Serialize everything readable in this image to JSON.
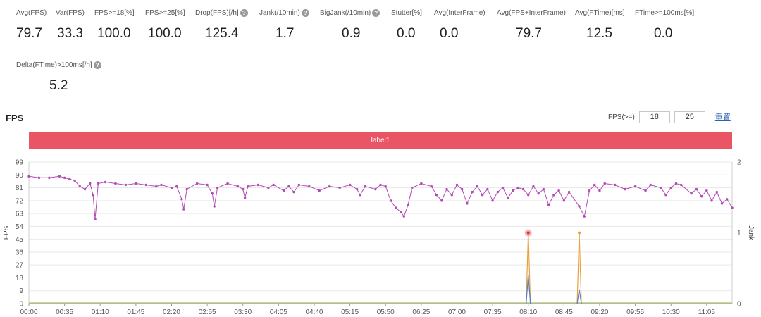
{
  "metrics": [
    {
      "label": "Avg(FPS)",
      "value": "79.7",
      "help": false
    },
    {
      "label": "Var(FPS)",
      "value": "33.3",
      "help": false
    },
    {
      "label": "FPS>=18[%]",
      "value": "100.0",
      "help": false
    },
    {
      "label": "FPS>=25[%]",
      "value": "100.0",
      "help": false
    },
    {
      "label": "Drop(FPS)[/h]",
      "value": "125.4",
      "help": true
    },
    {
      "label": "Jank(/10min)",
      "value": "1.7",
      "help": true
    },
    {
      "label": "BigJank(/10min)",
      "value": "0.9",
      "help": true
    },
    {
      "label": "Stutter[%]",
      "value": "0.0",
      "help": false
    },
    {
      "label": "Avg(InterFrame)",
      "value": "0.0",
      "help": false
    },
    {
      "label": "Avg(FPS+InterFrame)",
      "value": "79.7",
      "help": false
    },
    {
      "label": "Avg(FTime)[ms]",
      "value": "12.5",
      "help": false
    },
    {
      "label": "FTime>=100ms[%]",
      "value": "0.0",
      "help": false
    },
    {
      "label": "Delta(FTime)>100ms[/h]",
      "value": "5.2",
      "help": true
    }
  ],
  "section_title": "FPS",
  "fps_threshold": {
    "label": "FPS(>=)",
    "low": "18",
    "high": "25",
    "reset_label": "重置"
  },
  "label_bar": {
    "text": "label1",
    "color": "#ea5566"
  },
  "chart_data": {
    "type": "line",
    "ylabel": "FPS",
    "y2label": "Jank",
    "ylim": [
      0,
      99
    ],
    "y_ticks": [
      0,
      9,
      18,
      27,
      36,
      45,
      54,
      63,
      72,
      81,
      90,
      99
    ],
    "y2lim": [
      0,
      2
    ],
    "y2_ticks": [
      0,
      1,
      2
    ],
    "x_ticks": [
      "00:00",
      "00:35",
      "01:10",
      "01:45",
      "02:20",
      "02:55",
      "03:30",
      "04:05",
      "04:40",
      "05:15",
      "05:50",
      "06:25",
      "07:00",
      "07:35",
      "08:10",
      "08:45",
      "09:20",
      "09:55",
      "10:30",
      "11:05"
    ],
    "x_range_minutes": [
      0,
      690
    ],
    "fps_series": {
      "name": "FPS",
      "color": "#b24bb5",
      "points": [
        [
          0,
          89
        ],
        [
          10,
          88
        ],
        [
          20,
          88
        ],
        [
          30,
          89
        ],
        [
          35,
          88
        ],
        [
          40,
          87
        ],
        [
          45,
          86
        ],
        [
          50,
          82
        ],
        [
          55,
          80
        ],
        [
          60,
          84
        ],
        [
          63,
          76
        ],
        [
          65,
          59
        ],
        [
          68,
          84
        ],
        [
          75,
          85
        ],
        [
          85,
          84
        ],
        [
          95,
          83
        ],
        [
          105,
          84
        ],
        [
          115,
          83
        ],
        [
          125,
          82
        ],
        [
          130,
          83
        ],
        [
          140,
          81
        ],
        [
          145,
          82
        ],
        [
          150,
          73
        ],
        [
          152,
          66
        ],
        [
          155,
          80
        ],
        [
          165,
          84
        ],
        [
          175,
          83
        ],
        [
          180,
          77
        ],
        [
          182,
          68
        ],
        [
          185,
          81
        ],
        [
          195,
          84
        ],
        [
          205,
          82
        ],
        [
          210,
          80
        ],
        [
          212,
          74
        ],
        [
          215,
          82
        ],
        [
          225,
          83
        ],
        [
          235,
          81
        ],
        [
          240,
          83
        ],
        [
          250,
          79
        ],
        [
          255,
          82
        ],
        [
          260,
          78
        ],
        [
          265,
          83
        ],
        [
          275,
          82
        ],
        [
          285,
          79
        ],
        [
          295,
          82
        ],
        [
          305,
          81
        ],
        [
          315,
          83
        ],
        [
          322,
          80
        ],
        [
          325,
          76
        ],
        [
          330,
          82
        ],
        [
          340,
          80
        ],
        [
          345,
          83
        ],
        [
          350,
          82
        ],
        [
          355,
          72
        ],
        [
          360,
          67
        ],
        [
          365,
          64
        ],
        [
          368,
          61
        ],
        [
          372,
          69
        ],
        [
          376,
          81
        ],
        [
          385,
          84
        ],
        [
          395,
          82
        ],
        [
          400,
          76
        ],
        [
          405,
          72
        ],
        [
          410,
          80
        ],
        [
          415,
          76
        ],
        [
          420,
          83
        ],
        [
          425,
          80
        ],
        [
          430,
          70
        ],
        [
          435,
          78
        ],
        [
          440,
          82
        ],
        [
          445,
          76
        ],
        [
          450,
          80
        ],
        [
          455,
          72
        ],
        [
          460,
          78
        ],
        [
          465,
          81
        ],
        [
          470,
          74
        ],
        [
          475,
          79
        ],
        [
          480,
          81
        ],
        [
          485,
          80
        ],
        [
          490,
          76
        ],
        [
          495,
          82
        ],
        [
          500,
          77
        ],
        [
          505,
          80
        ],
        [
          510,
          69
        ],
        [
          515,
          76
        ],
        [
          520,
          79
        ],
        [
          525,
          72
        ],
        [
          530,
          78
        ],
        [
          540,
          68
        ],
        [
          545,
          61
        ],
        [
          550,
          79
        ],
        [
          555,
          83
        ],
        [
          560,
          79
        ],
        [
          565,
          84
        ],
        [
          575,
          83
        ],
        [
          585,
          80
        ],
        [
          595,
          82
        ],
        [
          605,
          79
        ],
        [
          610,
          83
        ],
        [
          620,
          81
        ],
        [
          625,
          76
        ],
        [
          630,
          81
        ],
        [
          635,
          84
        ],
        [
          640,
          83
        ],
        [
          650,
          77
        ],
        [
          655,
          80
        ],
        [
          660,
          75
        ],
        [
          665,
          79
        ],
        [
          670,
          72
        ],
        [
          675,
          78
        ],
        [
          680,
          70
        ],
        [
          685,
          73
        ],
        [
          690,
          67
        ]
      ]
    },
    "jank_series": {
      "name": "Jank",
      "color": "#e8a040",
      "points": [
        [
          490,
          1
        ],
        [
          540,
          1
        ]
      ]
    },
    "bigjank_series": {
      "name": "BigJank",
      "color": "#5b7fc0",
      "points": [
        [
          490,
          0.4
        ],
        [
          540,
          0.2
        ]
      ]
    },
    "baseline_color": "#b9c98a",
    "highlight_color": "#f4a0a8"
  }
}
